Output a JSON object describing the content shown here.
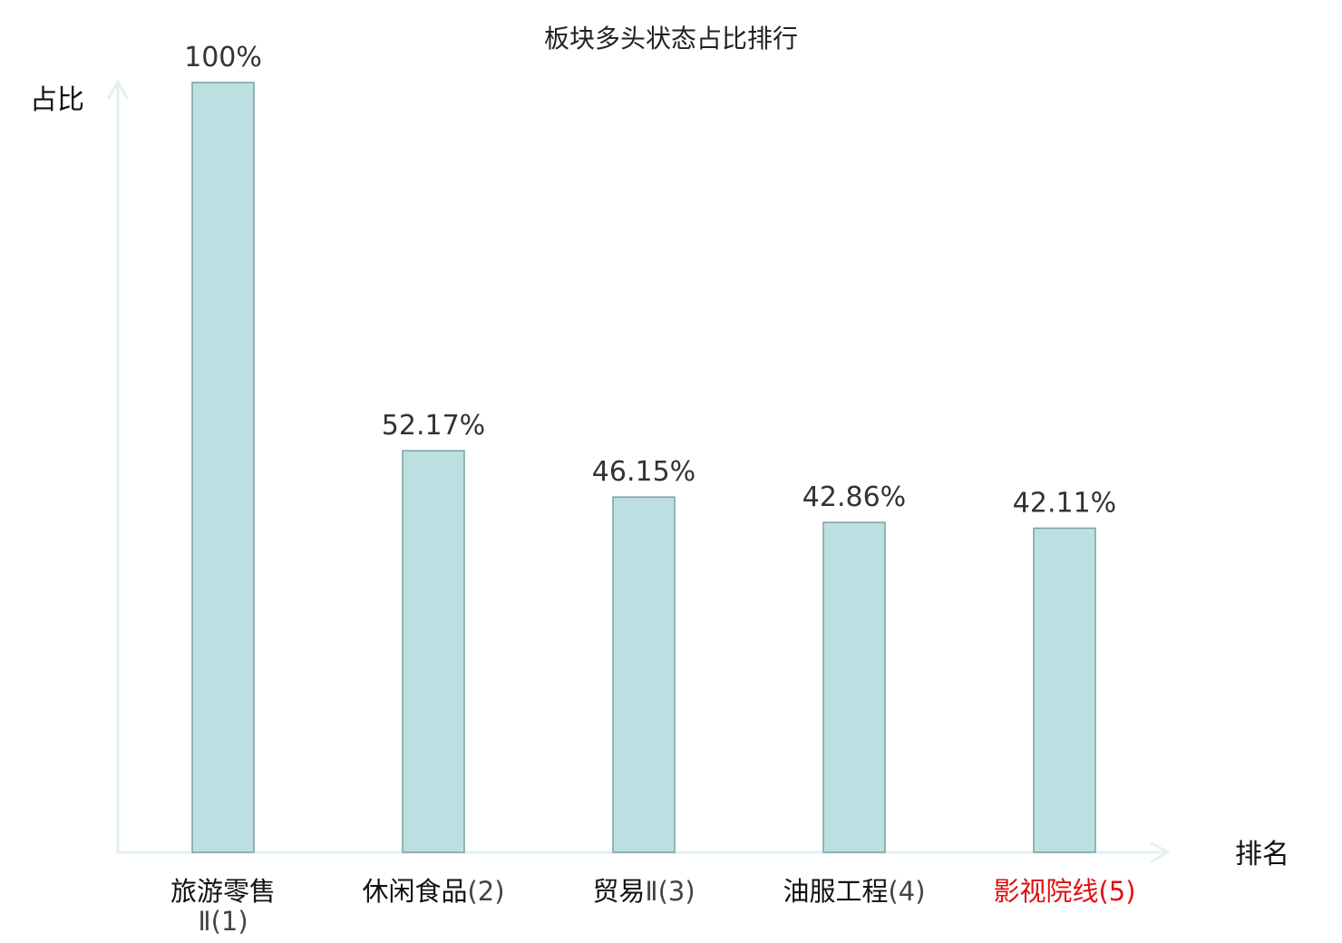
{
  "chart_data": {
    "type": "bar",
    "title": "板块多头状态占比排行",
    "ylabel": "占比",
    "xlabel": "排名",
    "ylim": [
      0,
      100
    ],
    "categories": [
      {
        "name": "旅游零售",
        "suffix": "Ⅱ(1)"
      },
      {
        "name": "休闲食品",
        "suffix": "(2)"
      },
      {
        "name": "贸易",
        "suffix": "Ⅱ(3)"
      },
      {
        "name": "油服工程",
        "suffix": "(4)"
      },
      {
        "name": "影视院线",
        "suffix": "(5)"
      }
    ],
    "values": [
      100,
      52.17,
      46.15,
      42.86,
      42.11
    ],
    "value_labels": [
      "100%",
      "52.17%",
      "46.15%",
      "42.86%",
      "42.11%"
    ],
    "highlight_index": 4,
    "colors": {
      "bar_fill": "#bce0e2",
      "bar_stroke": "#7f9fa2",
      "axis": "#e0f2f0",
      "text": "#111111",
      "suffix_text": "#444444",
      "highlight": "#e01010"
    },
    "grid": false
  }
}
